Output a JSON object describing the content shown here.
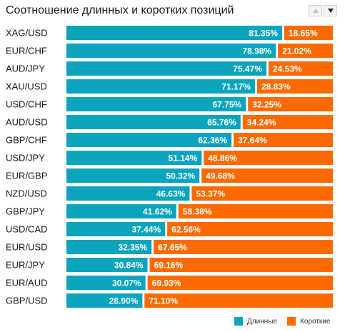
{
  "title": "Соотношение длинных и коротких позиций",
  "controls": {
    "sort_up_icon": "triangle-up-icon",
    "sort_down_icon": "triangle-down-icon"
  },
  "colors": {
    "long": "#0aa4bd",
    "short": "#ff6a00"
  },
  "legend": {
    "long_label": "Длинные",
    "short_label": "Короткие"
  },
  "chart_data": {
    "type": "bar",
    "stacked": true,
    "orientation": "horizontal",
    "categories": [
      "XAG/USD",
      "EUR/CHF",
      "AUD/JPY",
      "XAU/USD",
      "USD/CHF",
      "AUD/USD",
      "GBP/CHF",
      "USD/JPY",
      "EUR/GBP",
      "NZD/USD",
      "GBP/JPY",
      "USD/CAD",
      "EUR/USD",
      "EUR/JPY",
      "EUR/AUD",
      "GBP/USD"
    ],
    "series": [
      {
        "name": "Длинные",
        "values": [
          81.35,
          78.98,
          75.47,
          71.17,
          67.75,
          65.76,
          62.36,
          51.14,
          50.32,
          46.63,
          41.62,
          37.44,
          32.35,
          30.84,
          30.07,
          28.9
        ],
        "labels": [
          "81.35%",
          "78.98%",
          "75.47%",
          "71.17%",
          "67.75%",
          "65.76%",
          "62.36%",
          "51.14%",
          "50.32%",
          "46.63%",
          "41.62%",
          "37.44%",
          "32.35%",
          "30.84%",
          "30.07%",
          "28.90%"
        ]
      },
      {
        "name": "Короткие",
        "values": [
          18.65,
          21.02,
          24.53,
          28.83,
          32.25,
          34.24,
          37.64,
          48.86,
          49.68,
          53.37,
          58.38,
          62.56,
          67.65,
          69.16,
          69.93,
          71.1
        ],
        "labels": [
          "18.65%",
          "21.02%",
          "24.53%",
          "28.83%",
          "32.25%",
          "34.24%",
          "37.64%",
          "48.86%",
          "49.68%",
          "53.37%",
          "58.38%",
          "62.56%",
          "67.65%",
          "69.16%",
          "69.93%",
          "71.10%"
        ]
      }
    ],
    "xlim": [
      0,
      100
    ],
    "legend_position": "bottom-right",
    "grid": false
  }
}
